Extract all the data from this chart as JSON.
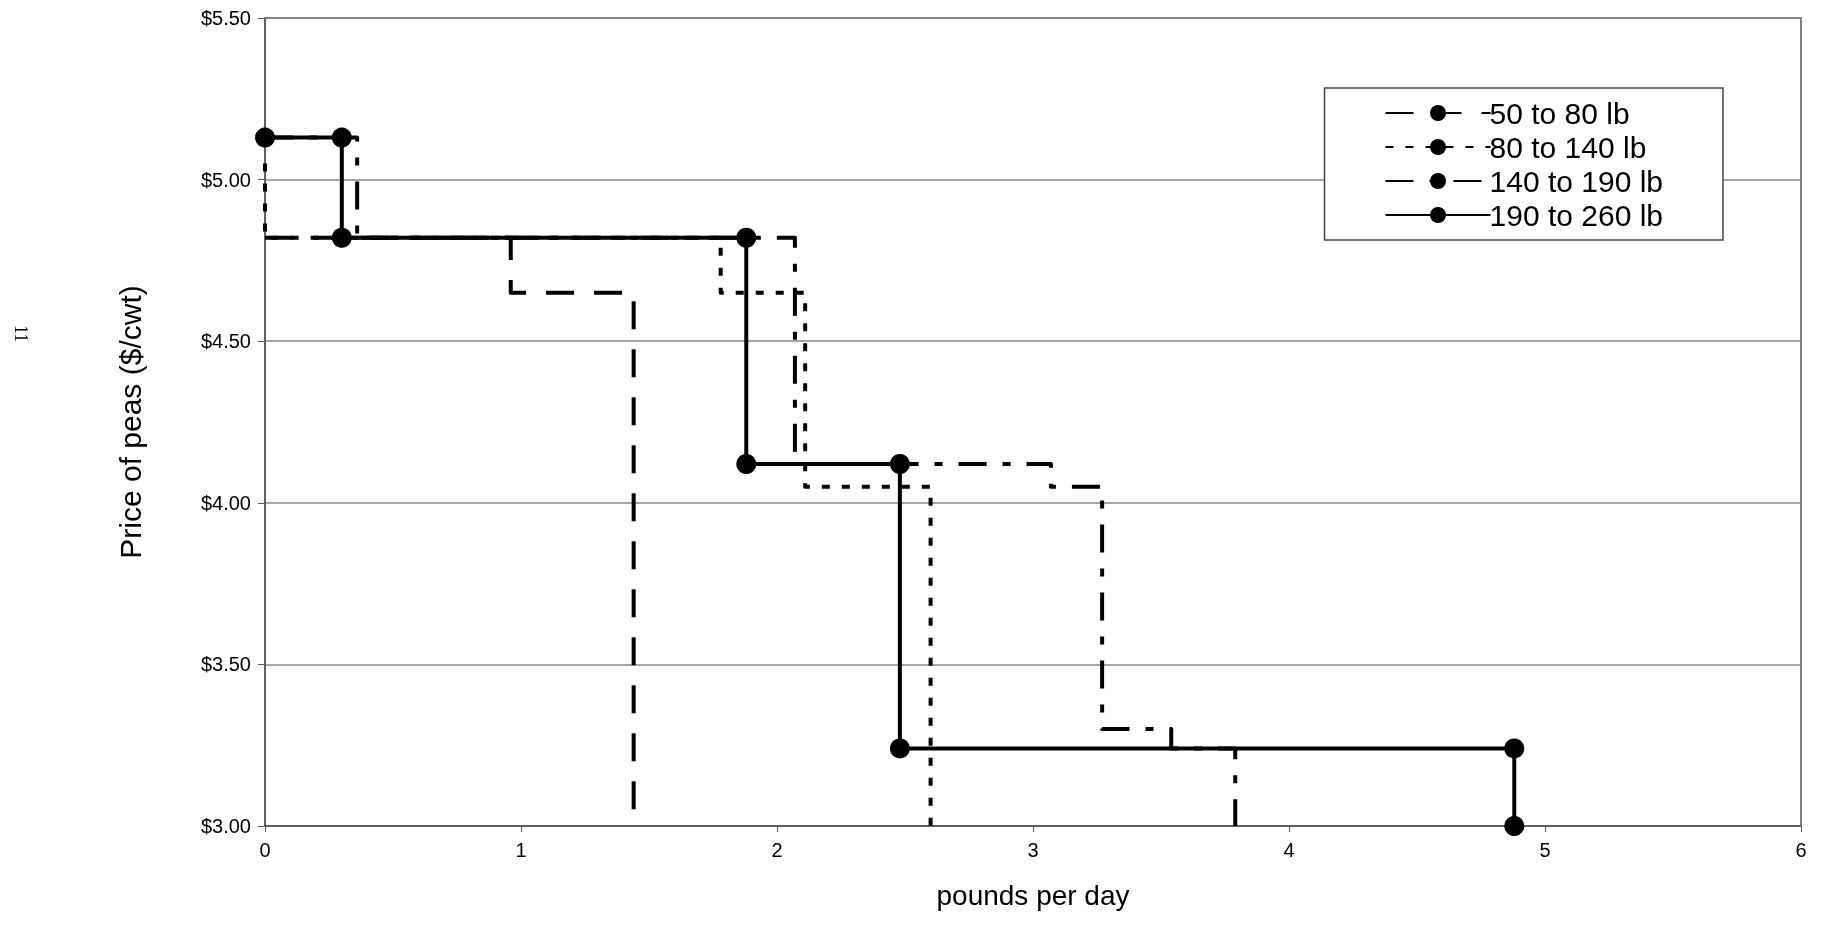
{
  "chart_data": {
    "type": "line",
    "xlabel": "pounds per day",
    "ylabel": "Price of peas ($/cwt)",
    "annotations": [
      "11"
    ],
    "series": [
      {
        "name": "50 to 80 lb",
        "color": "#000000",
        "line_style": "dashed",
        "marker": "none",
        "x": [
          0,
          0.96,
          0.96,
          1.44,
          1.44
        ],
        "values": [
          4.82,
          4.82,
          4.65,
          4.65,
          3.0
        ]
      },
      {
        "name": "80 to 140 lb",
        "color": "#000000",
        "line_style": "dotted",
        "marker": "none",
        "x": [
          0,
          0,
          1.78,
          1.78,
          2.11,
          2.11,
          2.6,
          2.6
        ],
        "values": [
          5.05,
          4.82,
          4.82,
          4.65,
          4.65,
          4.05,
          4.05,
          3.0
        ]
      },
      {
        "name": "140 to 190 lb",
        "color": "#000000",
        "line_style": "dashdot",
        "marker": "none",
        "x": [
          0,
          0.36,
          0.36,
          2.07,
          2.07,
          3.07,
          3.07,
          3.27,
          3.27,
          3.54,
          3.54,
          3.79,
          3.79
        ],
        "values": [
          5.13,
          5.13,
          4.82,
          4.82,
          4.12,
          4.12,
          4.05,
          4.05,
          3.3,
          3.3,
          3.24,
          3.24,
          3.0
        ]
      },
      {
        "name": "190 to 260 lb",
        "color": "#000000",
        "line_style": "solid",
        "marker": "circle",
        "x": [
          0,
          0.3,
          0.3,
          1.88,
          1.88,
          2.48,
          2.48,
          4.88,
          4.88
        ],
        "values": [
          5.13,
          5.13,
          4.82,
          4.82,
          4.12,
          4.12,
          3.24,
          3.24,
          3.0
        ]
      }
    ],
    "xlim": [
      0,
      6
    ],
    "xticks": [
      0,
      1,
      2,
      3,
      4,
      5,
      6
    ],
    "ylim": [
      3.0,
      5.5
    ],
    "yticks": [
      {
        "value": 3.0,
        "label": "$3.00"
      },
      {
        "value": 3.5,
        "label": "$3.50"
      },
      {
        "value": 4.0,
        "label": "$4.00"
      },
      {
        "value": 4.5,
        "label": "$4.50"
      },
      {
        "value": 5.0,
        "label": "$5.00"
      },
      {
        "value": 5.5,
        "label": "$5.50"
      }
    ],
    "grid": "y",
    "legend": "top right"
  }
}
